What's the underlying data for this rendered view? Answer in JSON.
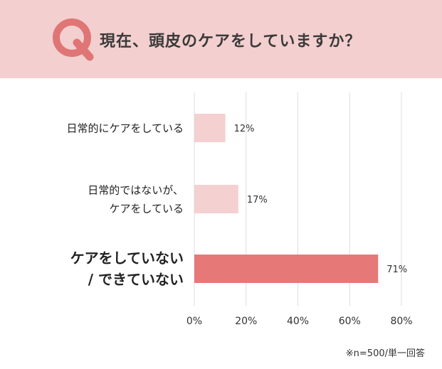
{
  "header": {
    "mark": "Q",
    "question": "現在、頭皮のケアをしていますか？"
  },
  "colors": {
    "header_bg": "#f3cfcf",
    "q_mark": "#e07575",
    "bar_light": "#f4d0d0",
    "bar_highlight": "#e67878",
    "grid": "#dddddd",
    "text": "#333333"
  },
  "chart_data": {
    "type": "bar",
    "orientation": "horizontal",
    "categories": [
      [
        "日常的にケアをしている"
      ],
      [
        "日常的ではないが、",
        "ケアをしている"
      ],
      [
        "ケアをしていない",
        "/ できていない"
      ]
    ],
    "values": [
      12,
      17,
      71
    ],
    "value_labels": [
      "12%",
      "17%",
      "71%"
    ],
    "highlight_index": 2,
    "xlim": [
      0,
      80
    ],
    "xticks": [
      0,
      20,
      40,
      60,
      80
    ],
    "xtick_labels": [
      "0%",
      "20%",
      "40%",
      "60%",
      "80%"
    ],
    "grid": true
  },
  "footnote": "※n=500/単一回答"
}
